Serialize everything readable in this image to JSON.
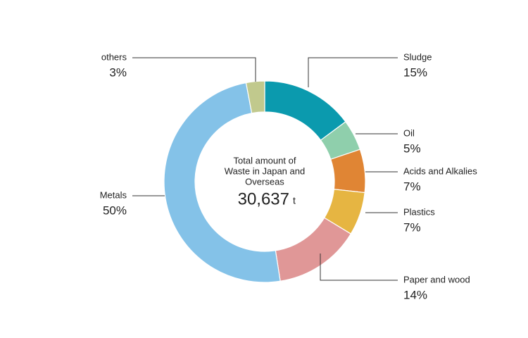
{
  "chart_data": {
    "type": "donut",
    "categories": [
      "Sludge",
      "Oil",
      "Acids and Alkalies",
      "Plastics",
      "Paper and wood",
      "Metals",
      "others"
    ],
    "values": [
      15,
      5,
      7,
      7,
      14,
      50,
      3
    ],
    "value_labels": [
      "15%",
      "5%",
      "7%",
      "7%",
      "14%",
      "50%",
      "3%"
    ],
    "colors": [
      "#0b9aae",
      "#8fcfac",
      "#e08534",
      "#e6b542",
      "#e09797",
      "#84c2e8",
      "#c1c98d"
    ],
    "center_text": [
      "Total amount of",
      "Waste in Japan and",
      "Overseas"
    ],
    "total": {
      "value": 30637,
      "label": "30,637"
    },
    "total_unit": "t"
  }
}
